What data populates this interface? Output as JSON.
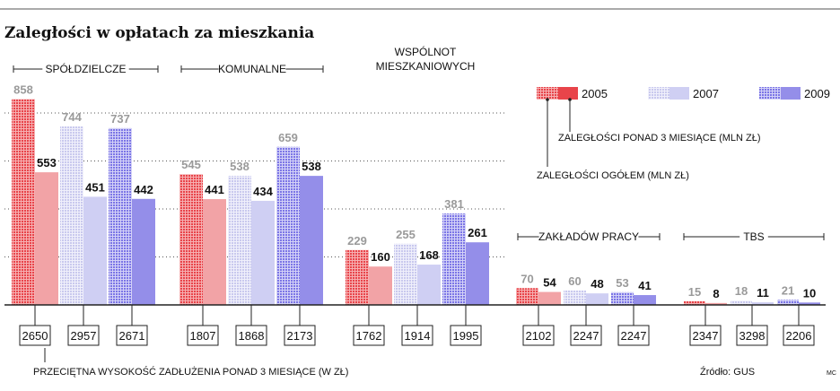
{
  "title": "Zaległości w opłatach za mieszkania",
  "source": "Źródło: GUS",
  "credit": "MC",
  "footnote": "PRZECIĘTNA WYSOKOŚĆ ZADŁUŻENIA PONAD 3 MIESIĄCE (W ZŁ)",
  "legend": {
    "years": [
      "2005",
      "2007",
      "2009"
    ],
    "label_over": "ZALEGŁOŚCI PONAD 3 MIESIĄCE (MLN ZŁ)",
    "label_total": "ZALEGŁOŚCI OGÓŁEM (MLN ZŁ)"
  },
  "colors": {
    "2005": "#e8444a",
    "2007": "#c4c4ec",
    "2009": "#8a84e8"
  },
  "chart_data": {
    "type": "bar",
    "units": "mln zł",
    "ylim": [
      0,
      900
    ],
    "years": [
      "2005",
      "2007",
      "2009"
    ],
    "groups": [
      {
        "name": "SPÓŁDZIELCZE",
        "total": [
          858,
          744,
          737
        ],
        "over3": [
          553,
          451,
          442
        ],
        "avg_debt": [
          2650,
          2957,
          2671
        ]
      },
      {
        "name": "KOMUNALNE",
        "total": [
          545,
          538,
          659
        ],
        "over3": [
          441,
          434,
          538
        ],
        "avg_debt": [
          1807,
          1868,
          2173
        ]
      },
      {
        "name": "WSPÓLNOT MIESZKANIOWYCH",
        "name_lines": [
          "WSPÓLNOT",
          "MIESZKANIOWYCH"
        ],
        "total": [
          229,
          255,
          381
        ],
        "over3": [
          160,
          168,
          261
        ],
        "avg_debt": [
          1762,
          1914,
          1995
        ]
      },
      {
        "name": "ZAKŁADÓW PRACY",
        "total": [
          70,
          60,
          53
        ],
        "over3": [
          54,
          48,
          41
        ],
        "avg_debt": [
          2102,
          2247,
          2247
        ]
      },
      {
        "name": "TBS",
        "total": [
          15,
          18,
          21
        ],
        "over3": [
          8,
          11,
          10
        ],
        "avg_debt": [
          2347,
          3298,
          2206
        ]
      }
    ]
  }
}
